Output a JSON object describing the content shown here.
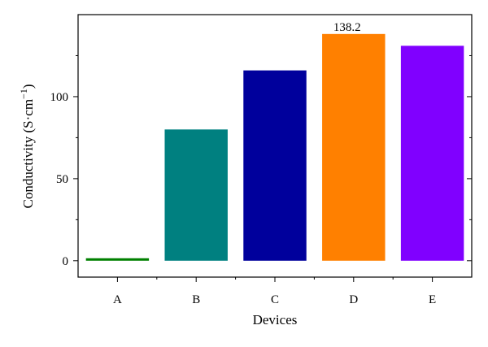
{
  "chart_data": {
    "type": "bar",
    "xlabel": "Devices",
    "ylabel_main": "Conductivity (S·cm",
    "ylabel_sup": "−1",
    "ylabel_close": ")",
    "categories": [
      "A",
      "B",
      "C",
      "D",
      "E"
    ],
    "values": [
      1.5,
      80,
      116,
      138.2,
      131
    ],
    "colors": [
      "#008000",
      "#008080",
      "#00009c",
      "#ff8000",
      "#8000ff"
    ],
    "ylim": [
      -10,
      150
    ],
    "yticks": [
      0,
      50,
      100
    ],
    "yticks_labels": [
      "0",
      "50",
      "100"
    ],
    "data_labels": [
      {
        "index": 3,
        "text": "138.2"
      }
    ],
    "grid": false,
    "legend": "none"
  }
}
